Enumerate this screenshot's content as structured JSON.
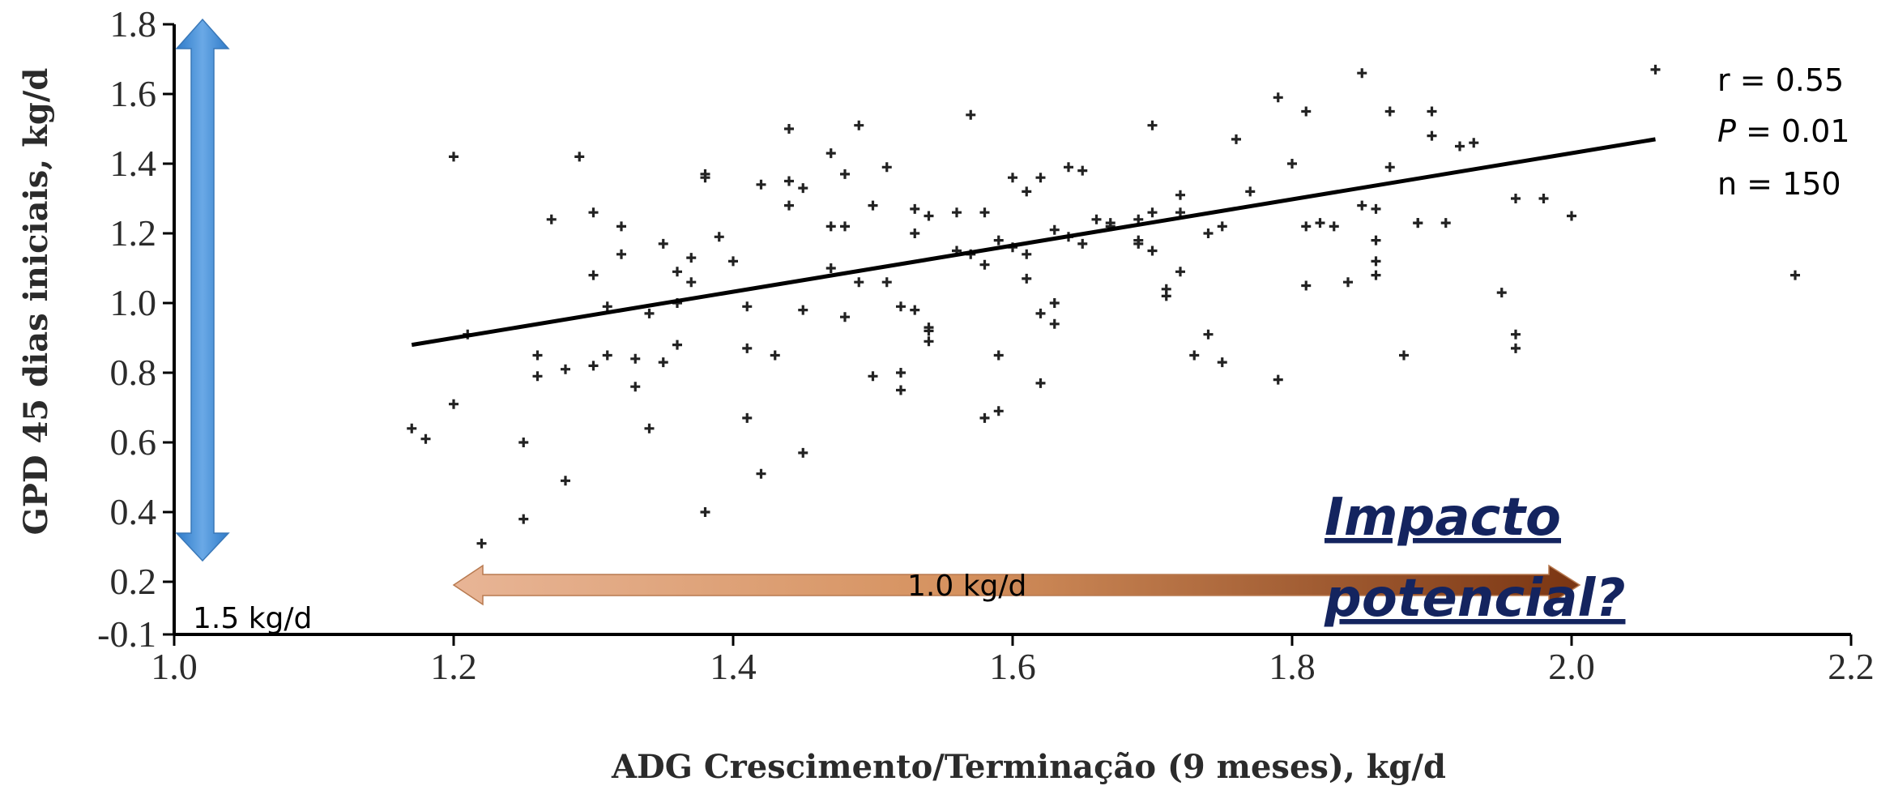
{
  "chart_data": {
    "type": "scatter",
    "xlabel": "ADG Crescimento/Terminação (9 meses), kg/d",
    "ylabel": "GPD 45 dias iniciais, kg/d",
    "xlim": [
      1.0,
      2.2
    ],
    "ylim": [
      -0.1,
      1.8
    ],
    "xticks": [
      "1.0",
      "1.2",
      "1.4",
      "1.6",
      "1.8",
      "2.0",
      "2.2"
    ],
    "yticks": [
      "-0.1",
      "0.2",
      "0.4",
      "0.6",
      "0.8",
      "1.0",
      "1.2",
      "1.4",
      "1.6",
      "1.8"
    ],
    "ytick_values": [
      -0.1,
      0.2,
      0.4,
      0.6,
      0.8,
      1.0,
      1.2,
      1.4,
      1.6,
      1.8
    ],
    "grid": false,
    "trendline": {
      "x": [
        1.17,
        2.06
      ],
      "y": [
        0.88,
        1.47
      ],
      "color": "#000000"
    },
    "point_color": "#222222",
    "stats": {
      "r": "r = 0.55",
      "p_symbol": "P",
      "p_rest": " = 0.01",
      "n": "n = 150"
    },
    "annotations": {
      "vertical_arrow_label": "1.5 kg/d",
      "horizontal_arrow_label": "1.0 kg/d",
      "impact_line1": "Impacto",
      "impact_line2": "potencial?",
      "vertical_arrow_color": "#4a90d9",
      "horizontal_arrow_start_color": "#e8b596",
      "horizontal_arrow_end_color": "#7a3512",
      "impact_color": "#14245f"
    },
    "points": [
      [
        1.17,
        0.64
      ],
      [
        1.18,
        0.61
      ],
      [
        1.2,
        1.42
      ],
      [
        1.2,
        0.71
      ],
      [
        1.21,
        0.91
      ],
      [
        1.22,
        0.31
      ],
      [
        1.25,
        0.38
      ],
      [
        1.25,
        0.6
      ],
      [
        1.26,
        0.79
      ],
      [
        1.26,
        0.85
      ],
      [
        1.27,
        1.24
      ],
      [
        1.28,
        0.49
      ],
      [
        1.28,
        0.81
      ],
      [
        1.29,
        1.42
      ],
      [
        1.3,
        0.82
      ],
      [
        1.3,
        1.08
      ],
      [
        1.3,
        1.26
      ],
      [
        1.31,
        0.85
      ],
      [
        1.31,
        0.99
      ],
      [
        1.32,
        1.22
      ],
      [
        1.32,
        1.14
      ],
      [
        1.33,
        0.84
      ],
      [
        1.33,
        0.76
      ],
      [
        1.34,
        0.97
      ],
      [
        1.34,
        0.64
      ],
      [
        1.35,
        0.83
      ],
      [
        1.35,
        1.17
      ],
      [
        1.36,
        1.09
      ],
      [
        1.36,
        1.0
      ],
      [
        1.36,
        0.88
      ],
      [
        1.37,
        1.06
      ],
      [
        1.37,
        1.13
      ],
      [
        1.38,
        0.4
      ],
      [
        1.38,
        1.37
      ],
      [
        1.38,
        1.36
      ],
      [
        1.39,
        1.19
      ],
      [
        1.4,
        1.12
      ],
      [
        1.41,
        0.67
      ],
      [
        1.41,
        0.87
      ],
      [
        1.41,
        0.99
      ],
      [
        1.42,
        0.51
      ],
      [
        1.42,
        1.34
      ],
      [
        1.43,
        0.85
      ],
      [
        1.44,
        1.5
      ],
      [
        1.44,
        1.35
      ],
      [
        1.45,
        0.98
      ],
      [
        1.45,
        0.57
      ],
      [
        1.45,
        1.33
      ],
      [
        1.47,
        1.43
      ],
      [
        1.47,
        1.1
      ],
      [
        1.47,
        1.22
      ],
      [
        1.48,
        1.37
      ],
      [
        1.48,
        1.22
      ],
      [
        1.48,
        0.96
      ],
      [
        1.49,
        1.51
      ],
      [
        1.49,
        1.06
      ],
      [
        1.5,
        0.79
      ],
      [
        1.5,
        1.28
      ],
      [
        1.51,
        1.39
      ],
      [
        1.51,
        1.06
      ],
      [
        1.52,
        0.8
      ],
      [
        1.52,
        0.99
      ],
      [
        1.52,
        0.75
      ],
      [
        1.53,
        1.27
      ],
      [
        1.53,
        0.98
      ],
      [
        1.54,
        1.25
      ],
      [
        1.54,
        0.93
      ],
      [
        1.54,
        0.89
      ],
      [
        1.54,
        0.92
      ],
      [
        1.56,
        1.15
      ],
      [
        1.56,
        1.26
      ],
      [
        1.57,
        1.54
      ],
      [
        1.57,
        1.14
      ],
      [
        1.58,
        1.26
      ],
      [
        1.58,
        0.67
      ],
      [
        1.59,
        1.18
      ],
      [
        1.59,
        0.69
      ],
      [
        1.59,
        0.85
      ],
      [
        1.6,
        1.36
      ],
      [
        1.6,
        1.16
      ],
      [
        1.61,
        1.32
      ],
      [
        1.61,
        1.07
      ],
      [
        1.61,
        1.14
      ],
      [
        1.62,
        0.77
      ],
      [
        1.62,
        1.36
      ],
      [
        1.62,
        0.97
      ],
      [
        1.63,
        1.21
      ],
      [
        1.63,
        1.0
      ],
      [
        1.63,
        0.94
      ],
      [
        1.64,
        1.19
      ],
      [
        1.64,
        1.39
      ],
      [
        1.65,
        1.17
      ],
      [
        1.65,
        1.38
      ],
      [
        1.67,
        1.23
      ],
      [
        1.67,
        1.22
      ],
      [
        1.69,
        1.24
      ],
      [
        1.69,
        1.18
      ],
      [
        1.69,
        1.17
      ],
      [
        1.7,
        1.51
      ],
      [
        1.7,
        1.26
      ],
      [
        1.7,
        1.15
      ],
      [
        1.71,
        1.04
      ],
      [
        1.71,
        1.02
      ],
      [
        1.72,
        1.26
      ],
      [
        1.72,
        1.31
      ],
      [
        1.72,
        1.09
      ],
      [
        1.73,
        0.85
      ],
      [
        1.74,
        0.91
      ],
      [
        1.74,
        1.2
      ],
      [
        1.75,
        0.83
      ],
      [
        1.75,
        1.22
      ],
      [
        1.76,
        1.47
      ],
      [
        1.77,
        1.32
      ],
      [
        1.79,
        1.59
      ],
      [
        1.79,
        0.78
      ],
      [
        1.8,
        1.4
      ],
      [
        1.81,
        1.55
      ],
      [
        1.81,
        1.22
      ],
      [
        1.81,
        1.05
      ],
      [
        1.82,
        1.23
      ],
      [
        1.83,
        1.22
      ],
      [
        1.84,
        1.06
      ],
      [
        1.85,
        1.28
      ],
      [
        1.85,
        1.66
      ],
      [
        1.86,
        1.27
      ],
      [
        1.86,
        1.18
      ],
      [
        1.86,
        1.08
      ],
      [
        1.86,
        1.12
      ],
      [
        1.87,
        1.39
      ],
      [
        1.87,
        1.55
      ],
      [
        1.88,
        0.85
      ],
      [
        1.89,
        1.23
      ],
      [
        1.89,
        1.23
      ],
      [
        1.9,
        1.48
      ],
      [
        1.9,
        1.55
      ],
      [
        1.91,
        1.23
      ],
      [
        1.92,
        1.45
      ],
      [
        1.93,
        1.46
      ],
      [
        1.95,
        1.03
      ],
      [
        1.96,
        1.3
      ],
      [
        1.96,
        0.87
      ],
      [
        1.96,
        0.91
      ],
      [
        1.98,
        1.3
      ],
      [
        2.0,
        1.25
      ],
      [
        2.06,
        1.67
      ],
      [
        2.16,
        1.08
      ],
      [
        1.44,
        1.28
      ],
      [
        1.66,
        1.24
      ],
      [
        1.58,
        1.11
      ],
      [
        1.53,
        1.2
      ]
    ]
  }
}
